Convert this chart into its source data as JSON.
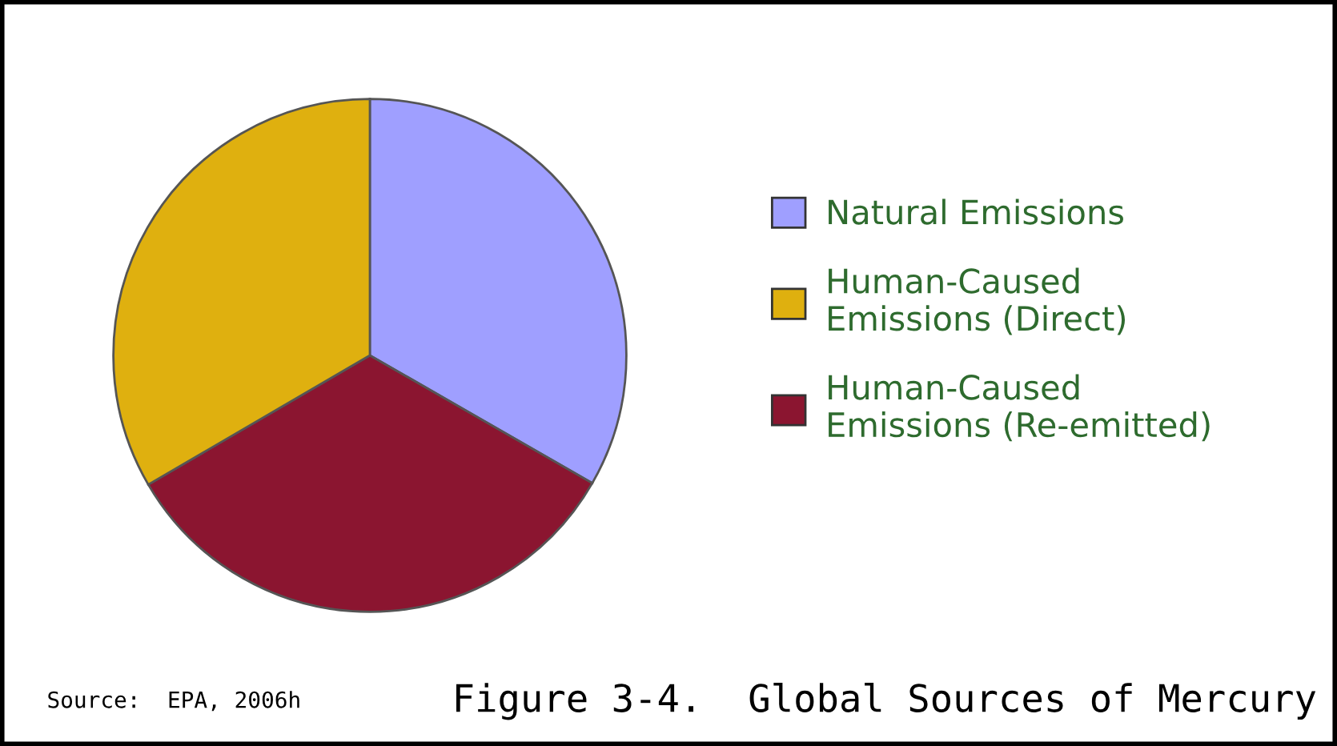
{
  "chart_data": {
    "type": "pie",
    "title": "Figure 3-4.  Global Sources of Mercury",
    "categories": [
      "Natural Emissions",
      "Human-Caused\nEmissions (Direct)",
      "Human-Caused\nEmissions (Re-emitted)"
    ],
    "values": [
      33.3,
      33.4,
      33.3
    ],
    "colors": [
      "#9f9fff",
      "#dfb00f",
      "#8b1530"
    ],
    "annotations": [
      "Source:  EPA, 2006h"
    ],
    "legend": "right"
  }
}
